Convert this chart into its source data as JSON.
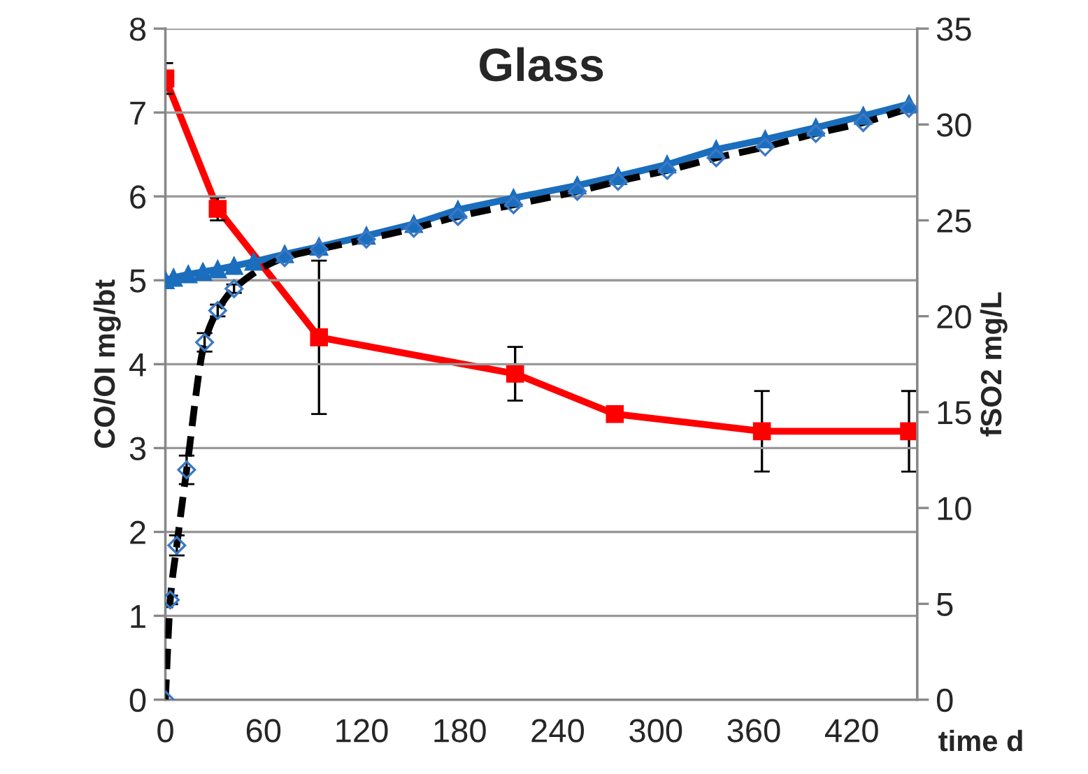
{
  "chart_data": {
    "type": "line",
    "title": "Glass",
    "xlabel": "time d",
    "ylabel": "CO/OI mg/bt",
    "y2label": "fSO2 mg/L",
    "xlim": [
      0,
      460
    ],
    "xticks": [
      0,
      60,
      120,
      180,
      240,
      300,
      360,
      420
    ],
    "ylim": [
      0,
      8
    ],
    "yticks": [
      0,
      1,
      2,
      3,
      4,
      5,
      6,
      7,
      8
    ],
    "y2lim": [
      0,
      35
    ],
    "y2ticks": [
      0,
      5,
      10,
      15,
      20,
      25,
      30,
      35
    ],
    "grid": "y",
    "legend": false,
    "series": [
      {
        "color": "#1a6ebd",
        "marker": "triangle",
        "line_style": "solid",
        "x": [
          0,
          5,
          14,
          23,
          32,
          42,
          54,
          73,
          94,
          123,
          152,
          179,
          213,
          252,
          277,
          307,
          337,
          367,
          398,
          427,
          455
        ],
        "values": [
          5.0,
          5.03,
          5.07,
          5.1,
          5.13,
          5.17,
          5.22,
          5.31,
          5.4,
          5.53,
          5.67,
          5.84,
          5.98,
          6.13,
          6.24,
          6.38,
          6.56,
          6.68,
          6.82,
          6.96,
          7.1
        ]
      },
      {
        "color": "#000000",
        "marker": "diamond",
        "line_style": "dashed",
        "x": [
          0,
          3,
          7,
          13,
          24,
          32,
          42,
          73,
          94,
          123,
          152,
          179,
          213,
          252,
          277,
          307,
          337,
          367,
          398,
          427,
          455
        ],
        "values": [
          0.0,
          1.19,
          1.84,
          2.74,
          4.26,
          4.64,
          4.9,
          5.27,
          5.37,
          5.49,
          5.62,
          5.76,
          5.9,
          6.06,
          6.18,
          6.31,
          6.46,
          6.59,
          6.75,
          6.88,
          7.05
        ],
        "errors": [
          null,
          0.05,
          0.12,
          0.17,
          0.11,
          0.07,
          0.05,
          null,
          null,
          null,
          null,
          null,
          null,
          null,
          null,
          null,
          null,
          null,
          null,
          null,
          null
        ]
      },
      {
        "color": "#ff0000",
        "marker": "square",
        "line_style": "solid",
        "axis": "y2",
        "x": [
          0,
          32,
          94,
          214,
          275,
          365,
          455
        ],
        "values": [
          32.4,
          25.6,
          18.9,
          17.0,
          14.9,
          14.0,
          14.0
        ],
        "errors": [
          0.8,
          0.6,
          4.0,
          1.4,
          null,
          2.1,
          2.1
        ]
      }
    ]
  }
}
